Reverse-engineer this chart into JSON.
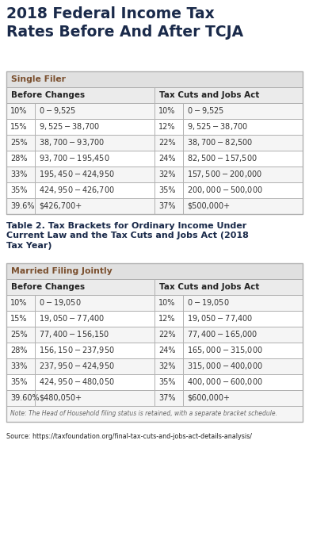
{
  "title": "2018 Federal Income Tax\nRates Before And After TCJA",
  "table2_title": "Table 2. Tax Brackets for Ordinary Income Under\nCurrent Law and the Tax Cuts and Jobs Act (2018\nTax Year)",
  "single_header": "Single Filer",
  "married_header": "Married Filing Jointly",
  "col_headers_before": "Before Changes",
  "col_headers_after": "Tax Cuts and Jobs Act",
  "single_before": [
    [
      "10%",
      "$0-$9,525"
    ],
    [
      "15%",
      "$9,525-$38,700"
    ],
    [
      "25%",
      "$38,700-$93,700"
    ],
    [
      "28%",
      "$93,700-$195,450"
    ],
    [
      "33%",
      "$195,450-$424,950"
    ],
    [
      "35%",
      "$424,950-$426,700"
    ],
    [
      "39.6%",
      "$426,700+"
    ]
  ],
  "single_after": [
    [
      "10%",
      "$0-$9,525"
    ],
    [
      "12%",
      "$9,525-$38,700"
    ],
    [
      "22%",
      "$38,700-$82,500"
    ],
    [
      "24%",
      "$82,500-$157,500"
    ],
    [
      "32%",
      "$157,500-$200,000"
    ],
    [
      "35%",
      "$200,000-$500,000"
    ],
    [
      "37%",
      "$500,000+"
    ]
  ],
  "married_before": [
    [
      "10%",
      "$0-$19,050"
    ],
    [
      "15%",
      "$19,050-$77,400"
    ],
    [
      "25%",
      "$77,400-$156,150"
    ],
    [
      "28%",
      "$156,150-$237,950"
    ],
    [
      "33%",
      "$237,950-$424,950"
    ],
    [
      "35%",
      "$424,950-$480,050"
    ],
    [
      "39.60%",
      "$480,050+"
    ]
  ],
  "married_after": [
    [
      "10%",
      "$0-$19,050"
    ],
    [
      "12%",
      "$19,050-$77,400"
    ],
    [
      "22%",
      "$77,400-$165,000"
    ],
    [
      "24%",
      "$165,000-$315,000"
    ],
    [
      "32%",
      "$315,000-$400,000"
    ],
    [
      "35%",
      "$400,000-$600,000"
    ],
    [
      "37%",
      "$600,000+"
    ]
  ],
  "note": "Note: The Head of Household filing status is retained, with a separate bracket schedule.",
  "source": "Source: https://taxfoundation.org/final-tax-cuts-and-jobs-act-details-analysis/",
  "bg_color": "#ffffff",
  "table_border_color": "#b0b0b0",
  "header_bg": "#ebebeb",
  "subheader_bg": "#e0e0e0",
  "row_even_bg": "#f5f5f5",
  "row_odd_bg": "#ffffff",
  "title_color": "#1a2a4a",
  "header_color": "#7a4f2e",
  "col_header_color": "#222222",
  "text_color": "#333333",
  "note_color": "#666666",
  "source_color": "#222222"
}
